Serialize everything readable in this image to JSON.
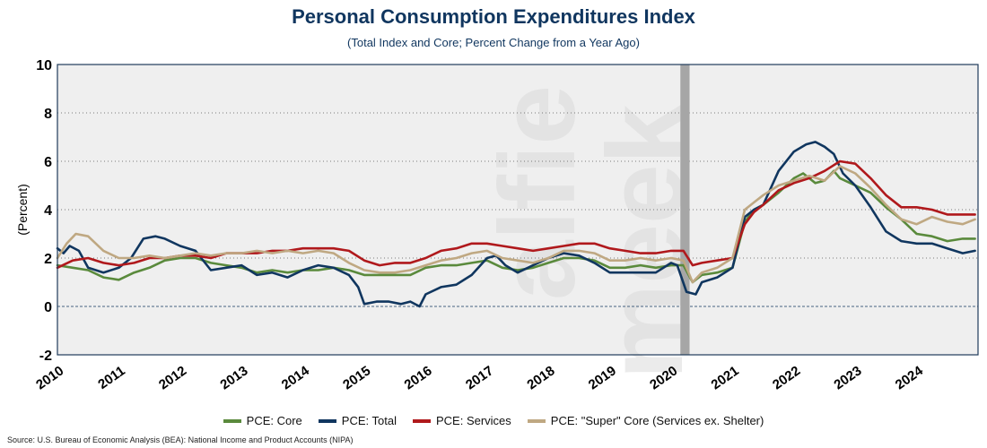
{
  "chart_data": {
    "type": "line",
    "title": "Personal Consumption Expenditures Index",
    "subtitle": "(Total Index and Core; Percent Change from a Year Ago)",
    "ylabel": "(Percent)",
    "xlabel": "",
    "xlim": [
      2010,
      2025
    ],
    "ylim": [
      -2,
      10
    ],
    "yticks": [
      -2,
      0,
      2,
      4,
      6,
      8,
      10
    ],
    "xticks": [
      "2010",
      "2011",
      "2012",
      "2013",
      "2014",
      "2015",
      "2016",
      "2017",
      "2018",
      "2019",
      "2020",
      "2021",
      "2022",
      "2023",
      "2024"
    ],
    "recession": {
      "start": 2020.15,
      "end": 2020.3
    },
    "grid": "horizontal-dotted",
    "legend_position": "bottom",
    "series": [
      {
        "name": "PCE: Core",
        "color": "#5a8a3c",
        "x": [
          2010,
          2010.25,
          2010.5,
          2010.75,
          2011,
          2011.25,
          2011.5,
          2011.75,
          2012,
          2012.25,
          2012.5,
          2012.75,
          2013,
          2013.25,
          2013.5,
          2013.75,
          2014,
          2014.25,
          2014.5,
          2014.75,
          2015,
          2015.25,
          2015.5,
          2015.75,
          2016,
          2016.25,
          2016.5,
          2016.75,
          2017,
          2017.25,
          2017.5,
          2017.75,
          2018,
          2018.25,
          2018.5,
          2018.75,
          2019,
          2019.25,
          2019.5,
          2019.75,
          2020,
          2020.2,
          2020.35,
          2020.5,
          2020.75,
          2021,
          2021.2,
          2021.35,
          2021.5,
          2021.75,
          2022,
          2022.15,
          2022.35,
          2022.5,
          2022.65,
          2022.75,
          2023,
          2023.25,
          2023.5,
          2023.75,
          2024,
          2024.25,
          2024.5,
          2024.75,
          2024.95
        ],
        "y": [
          1.7,
          1.6,
          1.5,
          1.2,
          1.1,
          1.4,
          1.6,
          1.9,
          2.0,
          2.0,
          1.8,
          1.7,
          1.6,
          1.4,
          1.5,
          1.4,
          1.5,
          1.5,
          1.6,
          1.5,
          1.3,
          1.3,
          1.3,
          1.3,
          1.6,
          1.7,
          1.7,
          1.8,
          1.9,
          1.6,
          1.5,
          1.6,
          1.8,
          2.0,
          2.0,
          1.9,
          1.6,
          1.6,
          1.7,
          1.6,
          1.7,
          1.7,
          1.0,
          1.3,
          1.4,
          1.6,
          3.5,
          4.0,
          4.2,
          4.7,
          5.3,
          5.5,
          5.1,
          5.2,
          5.6,
          5.3,
          5.0,
          4.7,
          4.1,
          3.6,
          3.0,
          2.9,
          2.7,
          2.8,
          2.8
        ]
      },
      {
        "name": "PCE: Total",
        "color": "#10365f",
        "x": [
          2010,
          2010.1,
          2010.2,
          2010.35,
          2010.5,
          2010.75,
          2011,
          2011.2,
          2011.4,
          2011.6,
          2011.75,
          2012,
          2012.25,
          2012.5,
          2012.75,
          2013,
          2013.25,
          2013.5,
          2013.75,
          2014,
          2014.25,
          2014.5,
          2014.75,
          2014.9,
          2015,
          2015.2,
          2015.4,
          2015.6,
          2015.75,
          2015.9,
          2016,
          2016.25,
          2016.5,
          2016.75,
          2017,
          2017.15,
          2017.3,
          2017.5,
          2017.75,
          2018,
          2018.25,
          2018.5,
          2018.75,
          2019,
          2019.25,
          2019.5,
          2019.75,
          2020,
          2020.1,
          2020.25,
          2020.4,
          2020.5,
          2020.75,
          2021,
          2021.2,
          2021.35,
          2021.5,
          2021.75,
          2022,
          2022.2,
          2022.35,
          2022.5,
          2022.65,
          2022.8,
          2023,
          2023.25,
          2023.5,
          2023.75,
          2024,
          2024.25,
          2024.5,
          2024.75,
          2024.95
        ],
        "y": [
          2.4,
          2.2,
          2.5,
          2.3,
          1.6,
          1.4,
          1.6,
          2.0,
          2.8,
          2.9,
          2.8,
          2.5,
          2.3,
          1.5,
          1.6,
          1.7,
          1.3,
          1.4,
          1.2,
          1.5,
          1.7,
          1.6,
          1.3,
          0.8,
          0.1,
          0.2,
          0.2,
          0.1,
          0.2,
          0.0,
          0.5,
          0.8,
          0.9,
          1.3,
          2.0,
          2.1,
          1.7,
          1.4,
          1.7,
          2.0,
          2.2,
          2.1,
          1.8,
          1.4,
          1.4,
          1.4,
          1.4,
          1.8,
          1.7,
          0.6,
          0.5,
          1.0,
          1.2,
          1.6,
          3.7,
          4.0,
          4.2,
          5.6,
          6.4,
          6.7,
          6.8,
          6.6,
          6.3,
          5.5,
          5.0,
          4.1,
          3.1,
          2.7,
          2.6,
          2.6,
          2.4,
          2.2,
          2.3
        ]
      },
      {
        "name": "PCE: Services",
        "color": "#b0191c",
        "x": [
          2010,
          2010.25,
          2010.5,
          2010.75,
          2011,
          2011.25,
          2011.5,
          2011.75,
          2012,
          2012.25,
          2012.5,
          2012.75,
          2013,
          2013.25,
          2013.5,
          2013.75,
          2014,
          2014.25,
          2014.5,
          2014.75,
          2015,
          2015.25,
          2015.5,
          2015.75,
          2016,
          2016.25,
          2016.5,
          2016.75,
          2017,
          2017.25,
          2017.5,
          2017.75,
          2018,
          2018.25,
          2018.5,
          2018.75,
          2019,
          2019.25,
          2019.5,
          2019.75,
          2020,
          2020.2,
          2020.35,
          2020.5,
          2020.75,
          2021,
          2021.2,
          2021.35,
          2021.5,
          2021.75,
          2022,
          2022.25,
          2022.5,
          2022.75,
          2023,
          2023.25,
          2023.5,
          2023.75,
          2024,
          2024.25,
          2024.5,
          2024.75,
          2024.95
        ],
        "y": [
          1.6,
          1.9,
          2.0,
          1.8,
          1.7,
          1.8,
          2.0,
          2.0,
          2.1,
          2.1,
          2.0,
          2.2,
          2.2,
          2.2,
          2.3,
          2.3,
          2.4,
          2.4,
          2.4,
          2.3,
          1.9,
          1.7,
          1.8,
          1.8,
          2.0,
          2.3,
          2.4,
          2.6,
          2.6,
          2.5,
          2.4,
          2.3,
          2.4,
          2.5,
          2.6,
          2.6,
          2.4,
          2.3,
          2.2,
          2.2,
          2.3,
          2.3,
          1.7,
          1.8,
          1.9,
          2.0,
          3.4,
          3.9,
          4.2,
          4.8,
          5.1,
          5.3,
          5.6,
          6.0,
          5.9,
          5.3,
          4.6,
          4.1,
          4.1,
          4.0,
          3.8,
          3.8,
          3.8
        ]
      },
      {
        "name": "PCE: \"Super\" Core (Services ex. Shelter)",
        "color": "#bfa882",
        "x": [
          2010,
          2010.15,
          2010.3,
          2010.5,
          2010.75,
          2011,
          2011.25,
          2011.5,
          2011.75,
          2012,
          2012.25,
          2012.5,
          2012.75,
          2013,
          2013.25,
          2013.5,
          2013.75,
          2014,
          2014.25,
          2014.5,
          2014.75,
          2015,
          2015.25,
          2015.5,
          2015.75,
          2016,
          2016.25,
          2016.5,
          2016.75,
          2017,
          2017.25,
          2017.5,
          2017.75,
          2018,
          2018.25,
          2018.5,
          2018.75,
          2019,
          2019.25,
          2019.5,
          2019.75,
          2020,
          2020.2,
          2020.35,
          2020.5,
          2020.75,
          2021,
          2021.2,
          2021.35,
          2021.5,
          2021.75,
          2022,
          2022.25,
          2022.5,
          2022.75,
          2023,
          2023.25,
          2023.5,
          2023.75,
          2024,
          2024.25,
          2024.5,
          2024.75,
          2024.95
        ],
        "y": [
          2.0,
          2.6,
          3.0,
          2.9,
          2.3,
          2.0,
          2.0,
          2.1,
          2.0,
          2.1,
          2.2,
          2.1,
          2.2,
          2.2,
          2.3,
          2.2,
          2.3,
          2.2,
          2.3,
          2.2,
          1.8,
          1.5,
          1.4,
          1.4,
          1.5,
          1.7,
          1.9,
          2.0,
          2.2,
          2.3,
          2.0,
          1.9,
          1.8,
          2.0,
          2.3,
          2.3,
          2.2,
          1.9,
          1.9,
          2.0,
          1.9,
          2.0,
          1.9,
          1.0,
          1.4,
          1.6,
          2.0,
          4.0,
          4.3,
          4.6,
          5.0,
          5.2,
          5.4,
          5.2,
          5.8,
          5.5,
          4.9,
          4.2,
          3.6,
          3.4,
          3.7,
          3.5,
          3.4,
          3.6
        ]
      }
    ]
  },
  "legend": {
    "items": [
      {
        "label": "PCE: Core",
        "color": "#5a8a3c"
      },
      {
        "label": "PCE: Total",
        "color": "#10365f"
      },
      {
        "label": "PCE: Services",
        "color": "#b0191c"
      },
      {
        "label": "PCE: \"Super\" Core (Services ex. Shelter)",
        "color": "#bfa882"
      }
    ]
  },
  "watermark": "alfie meek",
  "source": "Source: U.S. Bureau of Economic Analysis (BEA): National Income and Product Accounts (NIPA)"
}
